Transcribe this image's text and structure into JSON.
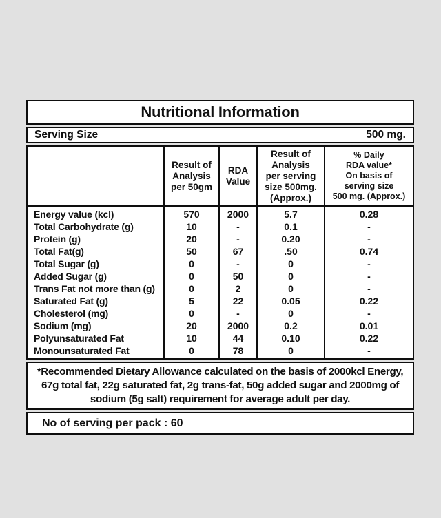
{
  "background_color": "#e1e1e1",
  "panel": {
    "title": "Nutritional Information",
    "serving_size_label": "Serving Size",
    "serving_size_value": "500 mg.",
    "table": {
      "columns": [
        "",
        "Result of\nAnalysis\nper 50gm",
        "RDA\nValue",
        "Result of\nAnalysis\nper serving\nsize 500mg.\n(Approx.)",
        "% Daily\nRDA value*\nOn basis of\nserving size\n500 mg. (Approx.)"
      ],
      "rows": [
        {
          "name": "Energy value (kcl)",
          "per50": "570",
          "rda": "2000",
          "per500": "5.7",
          "daily": "0.28"
        },
        {
          "name": "Total Carbohydrate (g)",
          "per50": "10",
          "rda": "-",
          "per500": "0.1",
          "daily": "-"
        },
        {
          "name": "Protein (g)",
          "per50": "20",
          "rda": "-",
          "per500": "0.20",
          "daily": "-"
        },
        {
          "name": "Total Fat(g)",
          "per50": "50",
          "rda": "67",
          "per500": ".50",
          "daily": "0.74"
        },
        {
          "name": "Total Sugar (g)",
          "per50": "0",
          "rda": "-",
          "per500": "0",
          "daily": "-"
        },
        {
          "name": "Added Sugar (g)",
          "per50": "0",
          "rda": "50",
          "per500": "0",
          "daily": "-"
        },
        {
          "name": "Trans Fat not more than (g)",
          "per50": "0",
          "rda": "2",
          "per500": "0",
          "daily": "-"
        },
        {
          "name": "Saturated Fat (g)",
          "per50": "5",
          "rda": "22",
          "per500": "0.05",
          "daily": "0.22"
        },
        {
          "name": "Cholesterol (mg)",
          "per50": "0",
          "rda": "-",
          "per500": "0",
          "daily": "-"
        },
        {
          "name": "Sodium (mg)",
          "per50": "20",
          "rda": "2000",
          "per500": "0.2",
          "daily": "0.01"
        },
        {
          "name": "Polyunsaturated Fat",
          "per50": "10",
          "rda": "44",
          "per500": "0.10",
          "daily": "0.22"
        },
        {
          "name": "Monounsaturated Fat",
          "per50": "0",
          "rda": "78",
          "per500": "0",
          "daily": "-"
        }
      ]
    },
    "footnote": "*Recommended Dietary Allowance calculated on the basis of 2000kcl Energy, 67g total fat, 22g saturated fat, 2g trans-fat, 50g added sugar and 2000mg of sodium (5g salt) requirement for average adult per day.",
    "servings_per_pack": "No of serving per pack : 60"
  }
}
